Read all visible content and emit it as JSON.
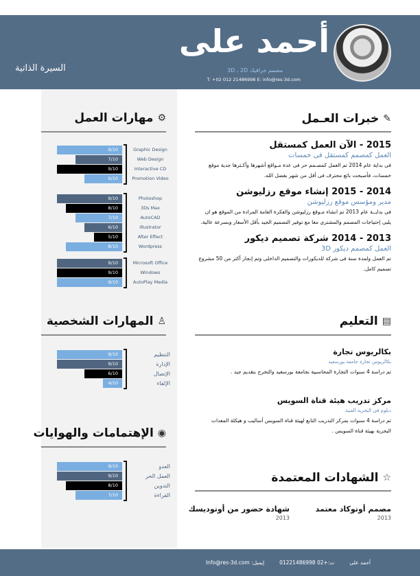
{
  "header": {
    "name": "أحمد على",
    "subtitle": "مصمم جرافيك 3D ، 2D",
    "contact": "T: +02 012 21486998    E: info@res-3d.com",
    "cv_label": "السيرة الذاتية"
  },
  "colors": {
    "header": "#546d87",
    "light_blue": "#7aaee0",
    "slate": "#506680",
    "black": "#000000",
    "panel": "#f2f2f2"
  },
  "work_skills": {
    "title": "مهارات العمل",
    "icon": "gear-icon",
    "groups": [
      [
        {
          "label": "Graphic Design",
          "value": "9/10",
          "level": 0.9,
          "color": "light"
        },
        {
          "label": "Web Design",
          "value": "7/10",
          "level": 0.7,
          "color": "slate"
        },
        {
          "label": "Interactive CD",
          "value": "9/10",
          "level": 0.9,
          "color": "black"
        },
        {
          "label": "Promotion Video",
          "value": "6/10",
          "level": 0.6,
          "color": "light"
        }
      ],
      [
        {
          "label": "Photoshop",
          "value": "9/10",
          "level": 0.9,
          "color": "slate"
        },
        {
          "label": "3Ds Max",
          "value": "8/10",
          "level": 0.8,
          "color": "black"
        },
        {
          "label": "AutoCAD",
          "value": "7/10",
          "level": 0.7,
          "color": "light"
        },
        {
          "label": "Illustrator",
          "value": "6/10",
          "level": 0.6,
          "color": "slate"
        },
        {
          "label": "After Effect",
          "value": "5/10",
          "level": 0.5,
          "color": "black"
        },
        {
          "label": "Wordpress",
          "value": "8/10",
          "level": 0.8,
          "color": "light"
        }
      ],
      [
        {
          "label": "Microsoft Office",
          "value": "9/10",
          "level": 0.9,
          "color": "slate"
        },
        {
          "label": "Windows",
          "value": "9/10",
          "level": 0.9,
          "color": "black"
        },
        {
          "label": "AutoPlay Media",
          "value": "9/10",
          "level": 0.9,
          "color": "light"
        }
      ]
    ]
  },
  "personal_skills": {
    "title": "المهارات الشخصية",
    "icon": "user-icon",
    "items": [
      {
        "label": "التنظيم",
        "value": "9/10",
        "level": 0.9,
        "color": "light"
      },
      {
        "label": "الإدارة",
        "value": "9/10",
        "level": 0.9,
        "color": "slate"
      },
      {
        "label": "الإتصال",
        "value": "6/10",
        "level": 0.6,
        "color": "black"
      },
      {
        "label": "الإلقاء",
        "value": "4/10",
        "level": 0.4,
        "color": "light"
      }
    ]
  },
  "hobbies": {
    "title": "الإهتمامات والهوايات",
    "icon": "eye-icon",
    "items": [
      {
        "label": "العدو",
        "value": "9/10",
        "level": 0.9,
        "color": "light"
      },
      {
        "label": "العمل الحر",
        "value": "9/10",
        "level": 0.9,
        "color": "slate"
      },
      {
        "label": "التدوين",
        "value": "8/10",
        "level": 0.8,
        "color": "black"
      },
      {
        "label": "القراءة",
        "value": "7/10",
        "level": 0.7,
        "color": "light"
      }
    ]
  },
  "experience": {
    "title": "خبرات العـمل",
    "icon": "pencil-icon",
    "items": [
      {
        "title": "2015 - الآن   العمل كمستقل",
        "subtitle": "العمل كمصمم كمستقل فى خمسات",
        "desc": "فى بداية عام 2014 تم العمل كمصـمم حر فى عدة مـواقع أشهرها وأكـثرها جدية موقع خمسات، فأصبحت بائع محترف فى أقل من شهر بفضل الله."
      },
      {
        "title": "2014 - 2015  إنشاء موقع رزليوشن",
        "subtitle": "مدير ومؤسس موقع رزليوشن",
        "desc": "فى بدايــة عام 2013 تم انشاء مـوقع رزليوشن والفكرة العامة المرادة من الموقع هو ان يلبى إحتياجات المصمم والمشترى معا مع توفير التصميم الجيد بأقل الأسعار وبسرعة عالية."
      },
      {
        "title": "2013 - 2014  شركة تصميم ديكور",
        "subtitle": "العمل كمصمم ديكور 3D",
        "desc": "تم العمل ولمدة سنة فى شركة للديكورات والتصميم الداخلى وتم إنجاز أكثر من 50 مشروع تصميم كامل."
      }
    ]
  },
  "education": {
    "title": "التعليم",
    "icon": "certificate-icon",
    "items": [
      {
        "title": "بكالريوس تجارة",
        "subtitle": "بكالريوس تجارة جامعة بورسعيد",
        "desc": "تم دراسة 4 سنوات التجارة المحاسبية بجامعة بورسعيد والتخرج بتقديم جيد ."
      },
      {
        "title": "مركز تدريب هيئة قناة السويس",
        "subtitle": "دبلوم فى البحرية الفنية",
        "desc": "تم دراسة 4 سنوات بمركز التدريب التابع لهيئة قناة السويس أساليب و هيكلة المعدات البحرية بهيئة قناة السويس ."
      }
    ]
  },
  "certificates": {
    "title": "الشهادات المعتمدة",
    "icon": "star-icon",
    "items": [
      {
        "title": "مصمم أوتوكاد معتمد",
        "year": "2013"
      },
      {
        "title": "شهادة حضور من أوتوديسك",
        "year": "2013"
      }
    ]
  },
  "footer": {
    "name": "أحمد على",
    "phone": "ت:+02 01221486998",
    "email": "إيميل: Info@res-3d.com"
  }
}
